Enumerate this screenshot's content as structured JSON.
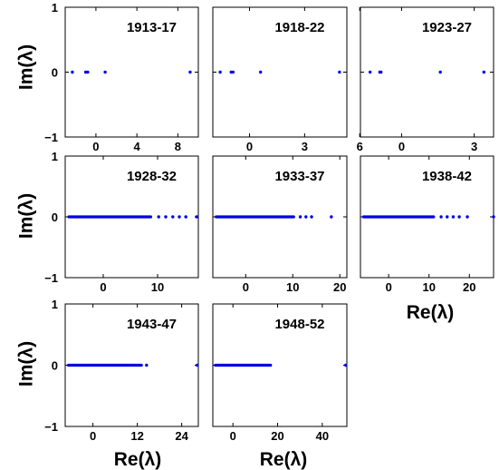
{
  "labels": {
    "im_axis": "Im(λ)",
    "re_axis": "Re(λ)"
  },
  "point_color": "#0000e0",
  "chart_data": [
    {
      "type": "scatter",
      "title": "1913-17",
      "xlim": [
        -3,
        10
      ],
      "ylim": [
        -1,
        1
      ],
      "x_ticks": [
        0,
        4,
        8
      ],
      "x_tick_labels": [
        "0",
        "4",
        "8"
      ],
      "y_ticks": [
        -1,
        0,
        1
      ],
      "y_tick_labels": [
        "−1",
        "0",
        "1"
      ],
      "points": {
        "x": [
          -2.3,
          -1.0,
          -0.8,
          0.9,
          9.2
        ],
        "y": [
          0,
          0,
          0,
          0,
          0
        ]
      }
    },
    {
      "type": "scatter",
      "title": "1918-22",
      "xlim": [
        -2,
        5.3
      ],
      "ylim": [
        -1,
        1
      ],
      "x_ticks": [
        0,
        3,
        6
      ],
      "x_tick_labels": [
        "0",
        "3",
        "6"
      ],
      "y_ticks": [
        -1,
        0,
        1
      ],
      "y_tick_labels": [
        "",
        "",
        ""
      ],
      "points": {
        "x": [
          -1.6,
          -1.0,
          -0.9,
          0.6,
          4.9
        ],
        "y": [
          0,
          0,
          0,
          0,
          0
        ]
      }
    },
    {
      "type": "scatter",
      "title": "1923-27",
      "xlim": [
        -1.7,
        3.8
      ],
      "ylim": [
        -1,
        1
      ],
      "x_ticks": [
        0,
        3
      ],
      "x_tick_labels": [
        "0",
        "3"
      ],
      "y_ticks": [
        -1,
        0,
        1
      ],
      "y_tick_labels": [
        "",
        "",
        ""
      ],
      "points": {
        "x": [
          -1.3,
          -0.9,
          -0.85,
          1.6,
          3.4
        ],
        "y": [
          0,
          0,
          0,
          0,
          0
        ]
      }
    },
    {
      "type": "scatter",
      "title": "1928-32",
      "xlim": [
        -7,
        17.5
      ],
      "ylim": [
        -1,
        1
      ],
      "x_ticks": [
        0,
        10
      ],
      "x_tick_labels": [
        "0",
        "10"
      ],
      "y_ticks": [
        -1,
        0,
        1
      ],
      "y_tick_labels": [
        "−1",
        "0",
        "1"
      ],
      "dense_range": [
        -6.6,
        9.0
      ],
      "points": {
        "x": [
          10.2,
          11.5,
          12.8,
          14.0,
          15.2,
          17.2
        ],
        "y": [
          0,
          0,
          0,
          0,
          0,
          0
        ]
      }
    },
    {
      "type": "scatter",
      "title": "1933-37",
      "xlim": [
        -7,
        21.5
      ],
      "ylim": [
        -1,
        1
      ],
      "x_ticks": [
        0,
        10,
        20
      ],
      "x_tick_labels": [
        "0",
        "10",
        "20"
      ],
      "y_ticks": [
        -1,
        0,
        1
      ],
      "y_tick_labels": [
        "",
        "",
        ""
      ],
      "dense_range": [
        -6.6,
        10.5
      ],
      "points": {
        "x": [
          11.6,
          12.8,
          14.0,
          18.2
        ],
        "y": [
          0,
          0,
          0,
          0
        ]
      }
    },
    {
      "type": "scatter",
      "title": "1938-42",
      "xlim": [
        -7,
        26
      ],
      "ylim": [
        -1,
        1
      ],
      "x_ticks": [
        0,
        10,
        20
      ],
      "x_tick_labels": [
        "0",
        "10",
        "20"
      ],
      "y_ticks": [
        -1,
        0,
        1
      ],
      "y_tick_labels": [
        "",
        "",
        ""
      ],
      "dense_range": [
        -6.6,
        11.5
      ],
      "points": {
        "x": [
          13.0,
          14.5,
          16.0,
          17.5,
          19.5,
          26.0
        ],
        "y": [
          0,
          0,
          0,
          0,
          0,
          0
        ]
      }
    },
    {
      "type": "scatter",
      "title": "1943-47",
      "xlim": [
        -7.5,
        28.5
      ],
      "ylim": [
        -1,
        1
      ],
      "x_ticks": [
        0,
        12,
        24
      ],
      "x_tick_labels": [
        "0",
        "12",
        "24"
      ],
      "y_ticks": [
        -1,
        0,
        1
      ],
      "y_tick_labels": [
        "−1",
        "0",
        "1"
      ],
      "dense_range": [
        -7.0,
        13.5
      ],
      "points": {
        "x": [
          14.5,
          28.2
        ],
        "y": [
          0,
          0
        ]
      }
    },
    {
      "type": "scatter",
      "title": "1948-52",
      "xlim": [
        -9,
        51
      ],
      "ylim": [
        -1,
        1
      ],
      "x_ticks": [
        0,
        20,
        40
      ],
      "x_tick_labels": [
        "0",
        "20",
        "40"
      ],
      "y_ticks": [
        -1,
        0,
        1
      ],
      "y_tick_labels": [
        "",
        "",
        ""
      ],
      "dense_range": [
        -8.5,
        17.5
      ],
      "points": {
        "x": [
          50.5
        ],
        "y": [
          0
        ]
      }
    }
  ]
}
